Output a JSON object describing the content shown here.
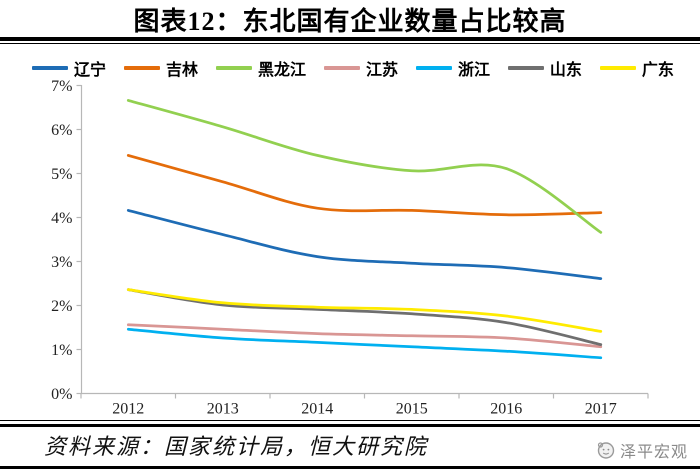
{
  "title": "图表12：东北国有企业数量占比较高",
  "source_note": "资料来源：国家统计局，恒大研究院",
  "watermark": "泽平宏观",
  "chart_data": {
    "type": "line",
    "title": "东北国有企业数量占比较高",
    "line_style": "smooth",
    "grid": false,
    "legend_position": "top",
    "x": [
      "2012",
      "2013",
      "2014",
      "2015",
      "2016",
      "2017"
    ],
    "xlabel": "",
    "ylabel": "",
    "ylim": [
      0,
      7
    ],
    "yticks": [
      "0%",
      "1%",
      "2%",
      "3%",
      "4%",
      "5%",
      "6%",
      "7%"
    ],
    "axis_color": "#b7b7b7",
    "tick_label_color": "#222222",
    "series": [
      {
        "name": "辽宁",
        "key": "liaoning",
        "color": "#1E6CB5",
        "values": [
          4.15,
          3.6,
          3.1,
          2.95,
          2.85,
          2.6
        ]
      },
      {
        "name": "吉林",
        "key": "jilin",
        "color": "#E46C0A",
        "values": [
          5.4,
          4.8,
          4.2,
          4.15,
          4.05,
          4.1
        ]
      },
      {
        "name": "黑龙江",
        "key": "heilongjiang",
        "color": "#92D050",
        "values": [
          6.65,
          6.05,
          5.4,
          5.05,
          5.1,
          3.65
        ]
      },
      {
        "name": "江苏",
        "key": "jiangsu",
        "color": "#D99694",
        "values": [
          1.55,
          1.45,
          1.35,
          1.3,
          1.25,
          1.05
        ]
      },
      {
        "name": "浙江",
        "key": "zhejiang",
        "color": "#00B0F0",
        "values": [
          1.45,
          1.25,
          1.15,
          1.05,
          0.95,
          0.8
        ]
      },
      {
        "name": "山东",
        "key": "shandong",
        "color": "#6F6F6F",
        "values": [
          2.35,
          2.0,
          1.9,
          1.8,
          1.6,
          1.1
        ]
      },
      {
        "name": "广东",
        "key": "guangdong",
        "color": "#FFEB00",
        "values": [
          2.35,
          2.05,
          1.95,
          1.9,
          1.75,
          1.4
        ]
      }
    ]
  }
}
